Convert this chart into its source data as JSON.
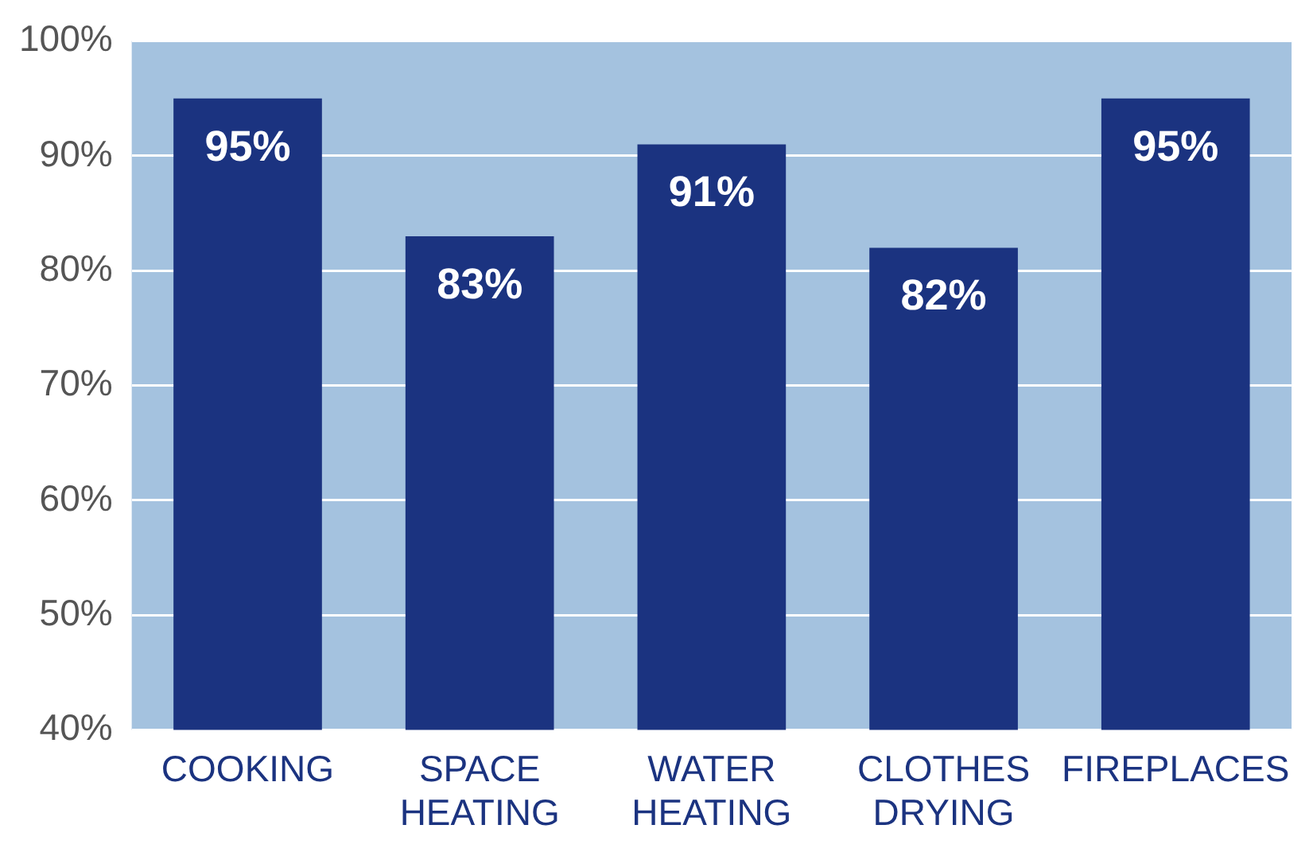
{
  "chart_data": {
    "type": "bar",
    "categories": [
      "COOKING",
      "SPACE HEATING",
      "WATER HEATING",
      "CLOTHES DRYING",
      "FIREPLACES"
    ],
    "values": [
      95,
      83,
      91,
      82,
      95
    ],
    "value_labels": [
      "95%",
      "83%",
      "91%",
      "82%",
      "95%"
    ],
    "color": "#1b3380",
    "ylim": [
      40,
      100
    ],
    "yticks": [
      {
        "value": 40,
        "label": "40%"
      },
      {
        "value": 50,
        "label": "50%"
      },
      {
        "value": 60,
        "label": "60%"
      },
      {
        "value": 70,
        "label": "70%"
      },
      {
        "value": 80,
        "label": "80%"
      },
      {
        "value": 90,
        "label": "90%"
      },
      {
        "value": 100,
        "label": "100%"
      }
    ],
    "bands": [
      {
        "axis": "y",
        "from": 40,
        "to": 100,
        "color": "#a4c2df"
      }
    ],
    "grid": "y"
  }
}
